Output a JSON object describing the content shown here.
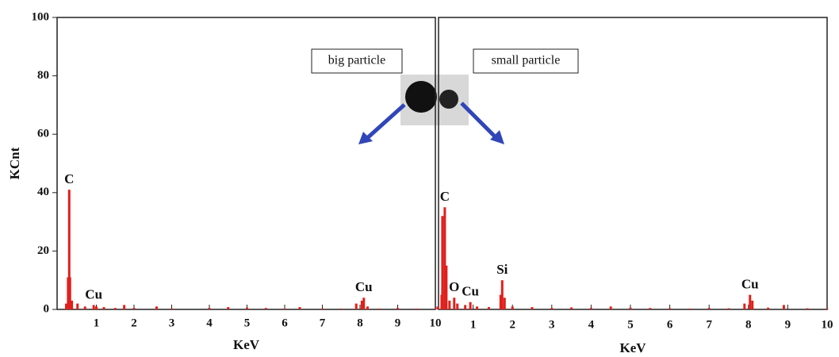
{
  "chart_data": [
    {
      "type": "stem",
      "xlabel": "KeV",
      "ylabel": "KCnt",
      "label": "big particle",
      "xlim": [
        0,
        10
      ],
      "ylim": [
        0,
        100
      ],
      "xticks": [
        1,
        2,
        3,
        4,
        5,
        6,
        7,
        8,
        9,
        10
      ],
      "yticks": [
        0,
        20,
        40,
        60,
        80,
        100
      ],
      "series": [
        {
          "color": "#e0201c",
          "x": [
            0.1,
            0.2,
            0.25,
            0.28,
            0.3,
            0.35,
            0.5,
            0.7,
            0.93,
            1.0,
            1.2,
            1.5,
            1.74,
            2.0,
            2.6,
            3.0,
            4.0,
            4.5,
            5.0,
            5.5,
            6.0,
            6.4,
            7.0,
            7.5,
            7.9,
            8.05,
            8.1,
            8.2,
            8.5,
            9.0,
            9.5,
            10
          ],
          "values": [
            0,
            2,
            11,
            41,
            11,
            3,
            2,
            1,
            1.5,
            1,
            0.8,
            0.5,
            1.5,
            0.5,
            1,
            0.3,
            0.5,
            0.8,
            0.6,
            0.5,
            0.3,
            0.8,
            0.3,
            0.3,
            2,
            3,
            4,
            1,
            0.3,
            0.5,
            0.3,
            0.2
          ]
        }
      ],
      "annotations": [
        {
          "text": "C",
          "x": 0.28,
          "y": 41
        },
        {
          "text": "Cu",
          "x": 0.93,
          "y": 1.5
        },
        {
          "text": "Cu",
          "x": 8.1,
          "y": 4
        }
      ]
    },
    {
      "type": "stem",
      "xlabel": "KeV",
      "label": "small particle",
      "xlim": [
        0,
        10
      ],
      "ylim": [
        0,
        100
      ],
      "xticks": [
        1,
        2,
        3,
        4,
        5,
        6,
        7,
        8,
        9,
        10
      ],
      "series": [
        {
          "color": "#e0201c",
          "x": [
            0.1,
            0.2,
            0.22,
            0.28,
            0.32,
            0.4,
            0.52,
            0.6,
            0.8,
            0.93,
            1.1,
            1.4,
            1.7,
            1.74,
            1.8,
            2.0,
            2.5,
            3.0,
            3.5,
            4.0,
            4.5,
            5.0,
            5.5,
            6.0,
            6.5,
            7.0,
            7.5,
            7.9,
            8.04,
            8.1,
            8.5,
            8.9,
            9.5,
            10
          ],
          "values": [
            1,
            5,
            32,
            35,
            15,
            3,
            4,
            2,
            1.5,
            2.5,
            1,
            0.8,
            5,
            10,
            4,
            1,
            0.8,
            0.5,
            0.7,
            0.5,
            1,
            0.6,
            0.5,
            0.4,
            0.3,
            0.5,
            0.4,
            2,
            5,
            3,
            0.6,
            1.5,
            0.4,
            0.3
          ]
        }
      ],
      "annotations": [
        {
          "text": "C",
          "x": 0.28,
          "y": 35
        },
        {
          "text": "O",
          "x": 0.52,
          "y": 4
        },
        {
          "text": "Cu",
          "x": 0.93,
          "y": 2.5
        },
        {
          "text": "Si",
          "x": 1.74,
          "y": 10
        },
        {
          "text": "Cu",
          "x": 8.04,
          "y": 5
        }
      ]
    }
  ]
}
